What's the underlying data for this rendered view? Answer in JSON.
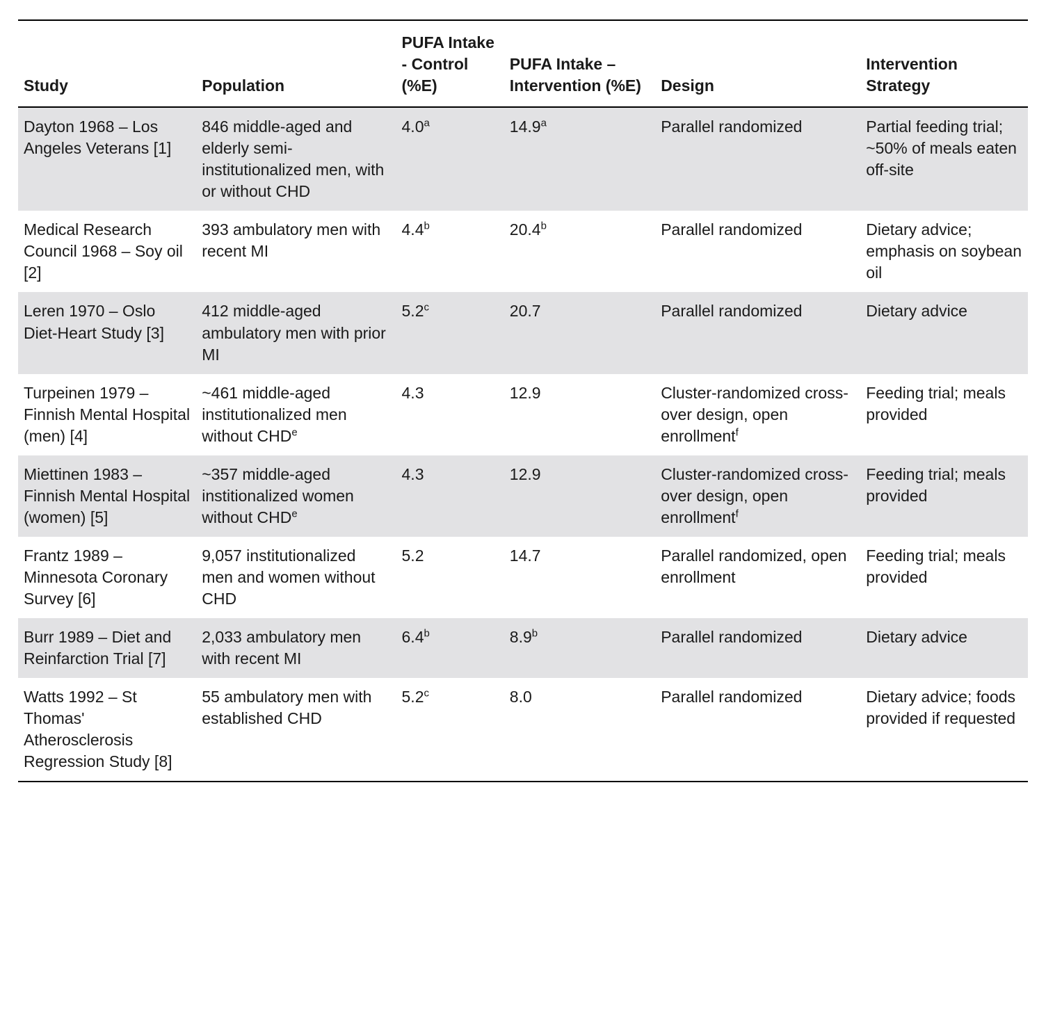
{
  "table": {
    "columns": [
      {
        "label": "Study"
      },
      {
        "label": "Population"
      },
      {
        "label": "PUFA Intake - Control (%E)"
      },
      {
        "label": "PUFA Intake – Intervention (%E)"
      },
      {
        "label": "Design"
      },
      {
        "label": "Intervention Strategy"
      }
    ],
    "rows": [
      {
        "study": "Dayton 1968 – Los Angeles Veterans [1]",
        "population": "846 middle-aged and elderly semi-institutionalized men, with or without CHD",
        "control": "4.0",
        "control_sup": "a",
        "intervention": "14.9",
        "intervention_sup": "a",
        "design": "Parallel randomized",
        "strategy": "Partial feeding trial; ~50% of meals eaten off-site"
      },
      {
        "study": "Medical Research Council 1968 – Soy oil [2]",
        "population": "393 ambulatory men with recent MI",
        "control": "4.4",
        "control_sup": "b",
        "intervention": "20.4",
        "intervention_sup": "b",
        "design": "Parallel randomized",
        "strategy": "Dietary advice; emphasis on soybean oil"
      },
      {
        "study": "Leren 1970 – Oslo Diet-Heart Study [3]",
        "population": "412 middle-aged ambulatory men with prior MI",
        "control": "5.2",
        "control_sup": "c",
        "intervention": "20.7",
        "intervention_sup": "",
        "design": "Parallel randomized",
        "strategy": "Dietary advice"
      },
      {
        "study": "Turpeinen 1979 – Finnish Mental Hospital (men) [4]",
        "population": "~461 middle-aged institutionalized men without CHD",
        "population_sup": "e",
        "control": "4.3",
        "control_sup": "",
        "intervention": "12.9",
        "intervention_sup": "",
        "design": "Cluster-randomized cross-over design, open enrollment",
        "design_sup": "f",
        "strategy": "Feeding trial; meals provided"
      },
      {
        "study": "Miettinen 1983 – Finnish Mental Hospital (women) [5]",
        "population": "~357 middle-aged institionalized women without CHD",
        "population_sup": "e",
        "control": "4.3",
        "control_sup": "",
        "intervention": "12.9",
        "intervention_sup": "",
        "design": "Cluster-randomized cross-over design, open enrollment",
        "design_sup": "f",
        "strategy": "Feeding trial; meals provided"
      },
      {
        "study": "Frantz 1989 – Minnesota Coronary Survey [6]",
        "population": "9,057 institutionalized men and women without CHD",
        "control": "5.2",
        "control_sup": "",
        "intervention": "14.7",
        "intervention_sup": "",
        "design": "Parallel randomized, open enrollment",
        "strategy": "Feeding trial; meals provided"
      },
      {
        "study": "Burr 1989 – Diet and Reinfarction Trial [7]",
        "population": "2,033 ambulatory men with recent MI",
        "control": "6.4",
        "control_sup": "b",
        "intervention": "8.9",
        "intervention_sup": "b",
        "design": "Parallel randomized",
        "strategy": "Dietary advice"
      },
      {
        "study": "Watts 1992 – St Thomas' Atherosclerosis Regression Study [8]",
        "population": "55 ambulatory men with established CHD",
        "control": "5.2",
        "control_sup": "c",
        "intervention": "8.0",
        "intervention_sup": "",
        "design": "Parallel randomized",
        "strategy": "Dietary advice; foods provided if requested"
      }
    ],
    "colors": {
      "stripe": "#e2e2e4",
      "rule": "#000000",
      "background": "#ffffff",
      "text": "#1a1a1a"
    },
    "typography": {
      "fontsize_pt": 17,
      "header_weight": 700,
      "body_weight": 400
    }
  }
}
